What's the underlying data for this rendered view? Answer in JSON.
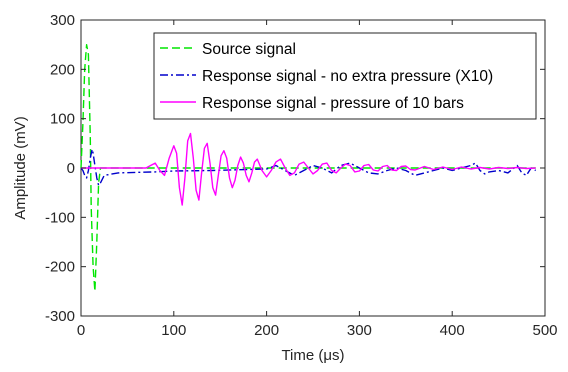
{
  "chart_data": {
    "type": "line",
    "title": "",
    "xlabel": "Time (μs)",
    "ylabel": "Amplitude (mV)",
    "xlim": [
      0,
      500
    ],
    "ylim": [
      -300,
      300
    ],
    "xticks": [
      0,
      100,
      200,
      300,
      400,
      500
    ],
    "yticks": [
      -300,
      -200,
      -100,
      0,
      100,
      200,
      300
    ],
    "grid": false,
    "legend_position": "top-right",
    "series": [
      {
        "name": "Source signal",
        "color": "#00e600",
        "style": "dashed",
        "points": [
          [
            0,
            0
          ],
          [
            2,
            90
          ],
          [
            4,
            200
          ],
          [
            6,
            250
          ],
          [
            8,
            230
          ],
          [
            10,
            60
          ],
          [
            11,
            -80
          ],
          [
            13,
            -200
          ],
          [
            15,
            -250
          ],
          [
            17,
            -150
          ],
          [
            19,
            -30
          ],
          [
            21,
            0
          ],
          [
            30,
            0
          ],
          [
            50,
            0
          ],
          [
            100,
            0
          ],
          [
            200,
            0
          ],
          [
            300,
            0
          ],
          [
            400,
            0
          ],
          [
            490,
            0
          ]
        ]
      },
      {
        "name": "Response signal - no extra pressure (X10)",
        "color": "#0000cc",
        "style": "dashdot",
        "points": [
          [
            0,
            0
          ],
          [
            2,
            -5
          ],
          [
            4,
            -15
          ],
          [
            6,
            -20
          ],
          [
            8,
            -5
          ],
          [
            10,
            20
          ],
          [
            12,
            38
          ],
          [
            13,
            30
          ],
          [
            15,
            5
          ],
          [
            17,
            -20
          ],
          [
            19,
            -35
          ],
          [
            21,
            -30
          ],
          [
            25,
            -15
          ],
          [
            40,
            -10
          ],
          [
            80,
            -8
          ],
          [
            100,
            -6
          ],
          [
            140,
            -5
          ],
          [
            180,
            -3
          ],
          [
            200,
            -2
          ],
          [
            210,
            5
          ],
          [
            215,
            0
          ],
          [
            220,
            -5
          ],
          [
            230,
            -15
          ],
          [
            240,
            -5
          ],
          [
            250,
            5
          ],
          [
            260,
            0
          ],
          [
            270,
            -10
          ],
          [
            280,
            5
          ],
          [
            290,
            10
          ],
          [
            300,
            0
          ],
          [
            310,
            -10
          ],
          [
            320,
            -12
          ],
          [
            330,
            -5
          ],
          [
            340,
            0
          ],
          [
            350,
            -5
          ],
          [
            360,
            -15
          ],
          [
            370,
            -10
          ],
          [
            380,
            -5
          ],
          [
            390,
            0
          ],
          [
            400,
            -5
          ],
          [
            410,
            0
          ],
          [
            420,
            5
          ],
          [
            425,
            10
          ],
          [
            430,
            -5
          ],
          [
            435,
            -12
          ],
          [
            440,
            -8
          ],
          [
            450,
            -5
          ],
          [
            460,
            -10
          ],
          [
            470,
            5
          ],
          [
            475,
            -10
          ],
          [
            480,
            -15
          ],
          [
            485,
            0
          ],
          [
            490,
            -5
          ]
        ]
      },
      {
        "name": "Response signal - pressure of 10 bars",
        "color": "#ff00ff",
        "style": "solid",
        "points": [
          [
            0,
            0
          ],
          [
            20,
            0
          ],
          [
            70,
            0
          ],
          [
            75,
            5
          ],
          [
            80,
            10
          ],
          [
            85,
            -5
          ],
          [
            90,
            -15
          ],
          [
            95,
            20
          ],
          [
            100,
            45
          ],
          [
            103,
            30
          ],
          [
            106,
            -40
          ],
          [
            109,
            -75
          ],
          [
            112,
            -20
          ],
          [
            115,
            55
          ],
          [
            118,
            70
          ],
          [
            121,
            20
          ],
          [
            124,
            -45
          ],
          [
            127,
            -65
          ],
          [
            130,
            -10
          ],
          [
            133,
            40
          ],
          [
            136,
            50
          ],
          [
            139,
            10
          ],
          [
            142,
            -40
          ],
          [
            145,
            -55
          ],
          [
            148,
            -15
          ],
          [
            151,
            25
          ],
          [
            154,
            35
          ],
          [
            157,
            20
          ],
          [
            160,
            -20
          ],
          [
            163,
            -40
          ],
          [
            166,
            -25
          ],
          [
            169,
            5
          ],
          [
            172,
            22
          ],
          [
            175,
            10
          ],
          [
            178,
            -15
          ],
          [
            181,
            -28
          ],
          [
            184,
            -10
          ],
          [
            187,
            12
          ],
          [
            190,
            18
          ],
          [
            195,
            -5
          ],
          [
            200,
            -18
          ],
          [
            205,
            -5
          ],
          [
            210,
            12
          ],
          [
            215,
            18
          ],
          [
            220,
            0
          ],
          [
            225,
            -15
          ],
          [
            230,
            -10
          ],
          [
            235,
            8
          ],
          [
            240,
            12
          ],
          [
            245,
            0
          ],
          [
            250,
            -12
          ],
          [
            255,
            -5
          ],
          [
            260,
            8
          ],
          [
            265,
            10
          ],
          [
            270,
            -5
          ],
          [
            275,
            -10
          ],
          [
            280,
            0
          ],
          [
            285,
            8
          ],
          [
            290,
            5
          ],
          [
            295,
            -8
          ],
          [
            300,
            -6
          ],
          [
            305,
            5
          ],
          [
            310,
            7
          ],
          [
            315,
            -4
          ],
          [
            320,
            -6
          ],
          [
            325,
            3
          ],
          [
            330,
            5
          ],
          [
            335,
            -4
          ],
          [
            340,
            -5
          ],
          [
            345,
            3
          ],
          [
            350,
            4
          ],
          [
            355,
            -3
          ],
          [
            360,
            -4
          ],
          [
            370,
            3
          ],
          [
            380,
            -3
          ],
          [
            390,
            2
          ],
          [
            400,
            -3
          ],
          [
            410,
            2
          ],
          [
            420,
            -2
          ],
          [
            430,
            1
          ],
          [
            440,
            -2
          ],
          [
            450,
            1
          ],
          [
            460,
            -1
          ],
          [
            470,
            1
          ],
          [
            480,
            -1
          ],
          [
            490,
            0
          ]
        ]
      }
    ]
  }
}
